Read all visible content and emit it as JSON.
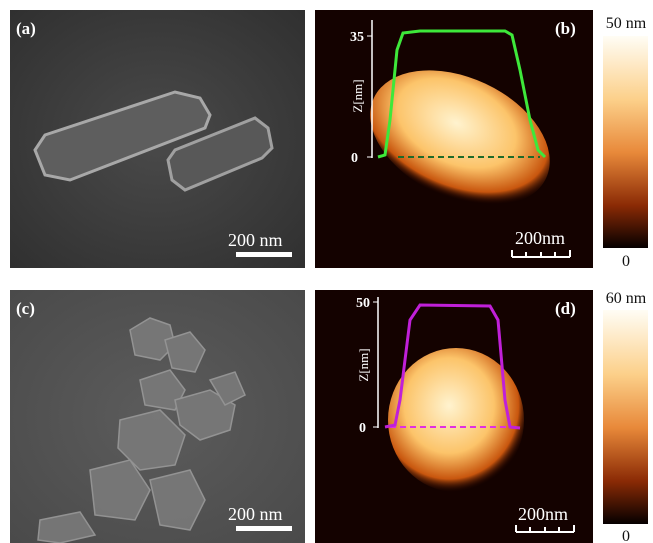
{
  "panels": [
    {
      "label": "(a)",
      "scale_bar": "200 nm"
    },
    {
      "label": "(b)",
      "scale_bar": "200nm",
      "profile": {
        "axis_label": "Z[nm]",
        "ticks": [
          "35",
          "0"
        ]
      },
      "colorbar": {
        "max": "50 nm",
        "min": "0"
      }
    },
    {
      "label": "(c)",
      "scale_bar": "200 nm"
    },
    {
      "label": "(d)",
      "scale_bar": "200nm",
      "profile": {
        "axis_label": "Z[nm]",
        "ticks": [
          "50",
          "0"
        ]
      },
      "colorbar": {
        "max": "60 nm",
        "min": "0"
      }
    }
  ]
}
